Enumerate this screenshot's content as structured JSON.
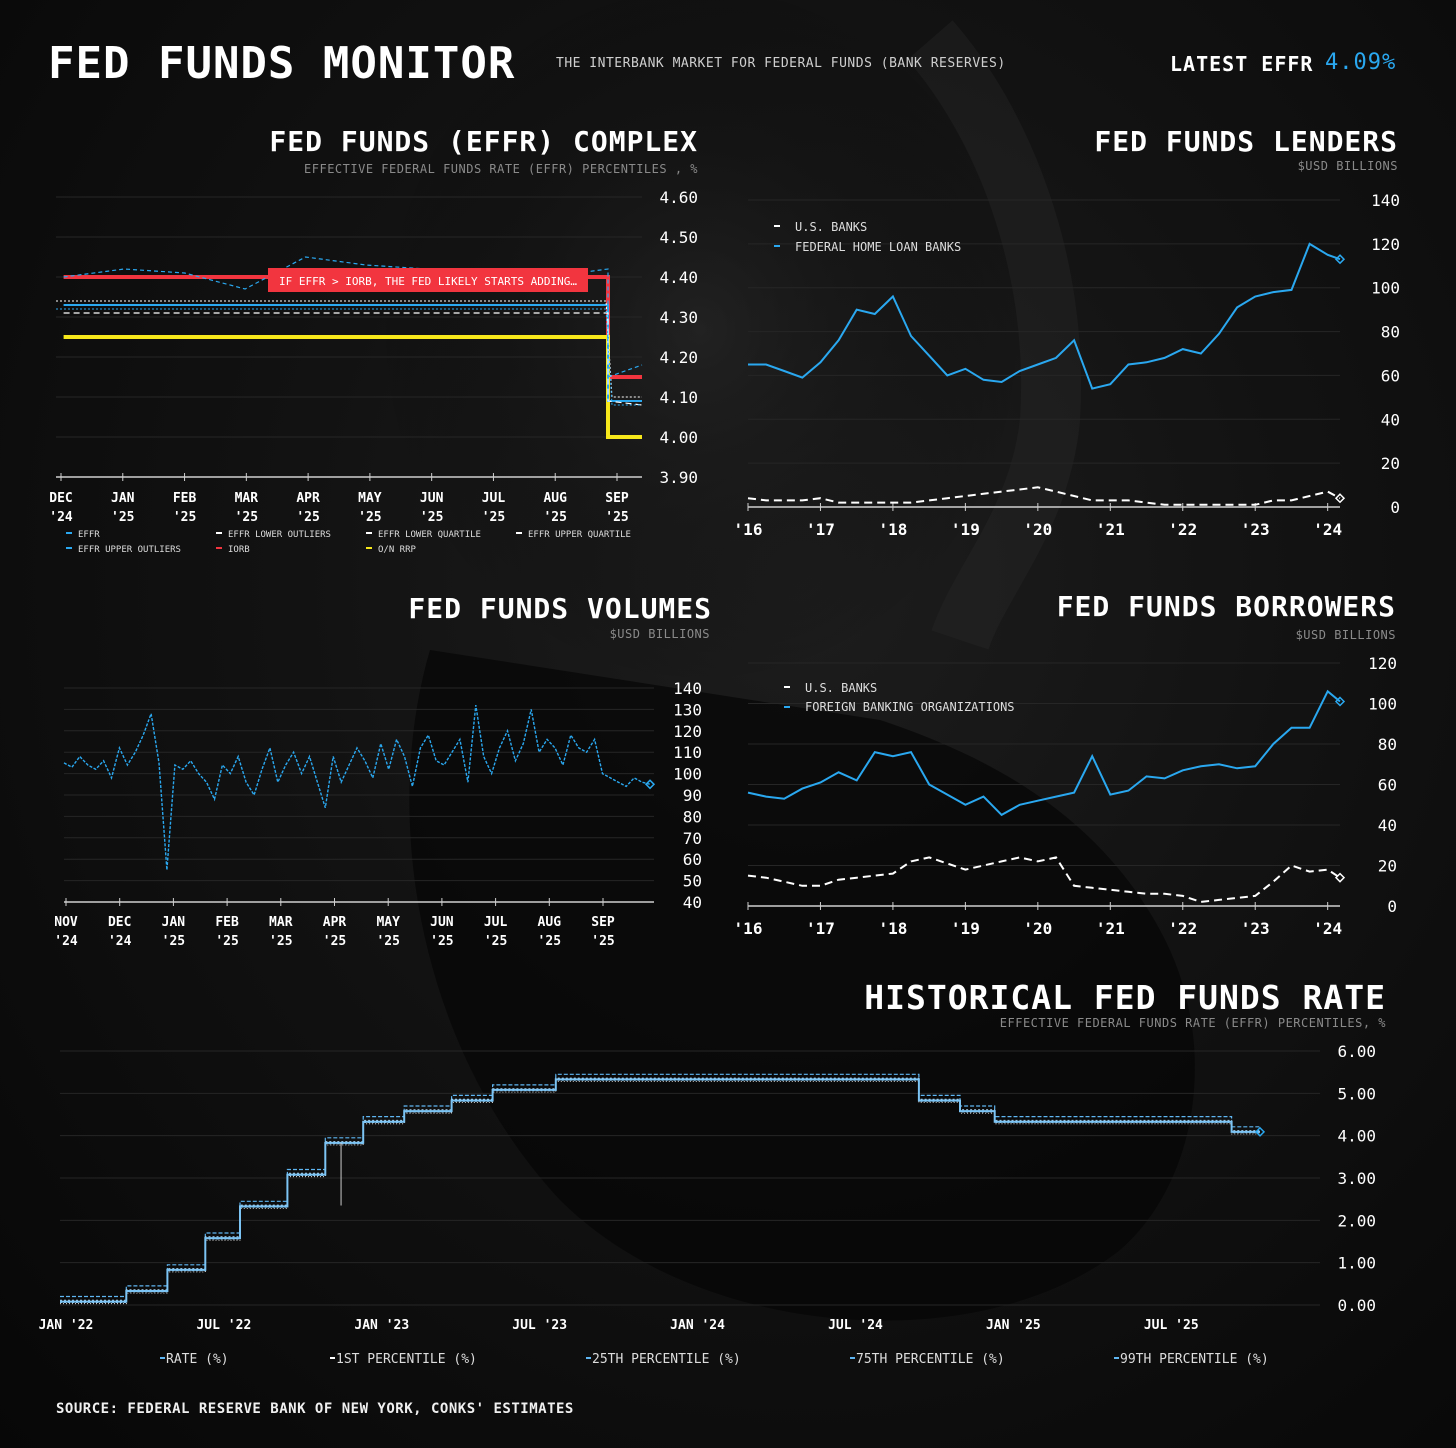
{
  "header": {
    "title": "FED FUNDS MONITOR",
    "subtitle": "THE INTERBANK MARKET FOR FEDERAL FUNDS (BANK RESERVES)",
    "latest_label": "LATEST EFFR",
    "latest_value": "4.09%"
  },
  "footer": {
    "source": "SOURCE: FEDERAL RESERVE BANK OF NEW YORK, CONKS' ESTIMATES"
  },
  "colors": {
    "blue": "#2aa8f0",
    "white": "#ffffff",
    "red": "#f2353f",
    "yellow": "#f7e81b"
  },
  "chart_data": [
    {
      "id": "complex",
      "type": "line",
      "title": "FED FUNDS (EFFR) COMPLEX",
      "subtitle": "EFFECTIVE FEDERAL FUNDS RATE (EFFR) PERCENTILES , %",
      "ylim": [
        3.9,
        4.6
      ],
      "yticks": [
        "4.60",
        "4.50",
        "4.40",
        "4.30",
        "4.20",
        "4.10",
        "4.00",
        "3.90"
      ],
      "xticks": [
        [
          "DEC",
          "'24"
        ],
        [
          "JAN",
          "'25"
        ],
        [
          "FEB",
          "'25"
        ],
        [
          "MAR",
          "'25"
        ],
        [
          "APR",
          "'25"
        ],
        [
          "MAY",
          "'25"
        ],
        [
          "JUN",
          "'25"
        ],
        [
          "JUL",
          "'25"
        ],
        [
          "AUG",
          "'25"
        ],
        [
          "SEP",
          "'25"
        ]
      ],
      "annotation": "IF EFFR > IORB, THE FED LIKELY STARTS ADDING…",
      "legend": [
        "EFFR",
        "EFFR LOWER OUTLIERS",
        "EFFR LOWER QUARTILE",
        "EFFR UPPER QUARTILE",
        "EFFR UPPER OUTLIERS",
        "IORB",
        "O/N RRP"
      ],
      "series": [
        {
          "name": "IORB",
          "values": [
            4.4,
            4.4,
            4.4,
            4.4,
            4.4,
            4.4,
            4.4,
            4.4,
            4.4,
            4.4,
            4.15,
            4.15
          ]
        },
        {
          "name": "O/N RRP",
          "values": [
            4.25,
            4.25,
            4.25,
            4.25,
            4.25,
            4.25,
            4.25,
            4.25,
            4.25,
            4.25,
            4.0,
            4.0
          ]
        },
        {
          "name": "EFFR",
          "values": [
            4.33,
            4.33,
            4.33,
            4.33,
            4.33,
            4.33,
            4.33,
            4.33,
            4.33,
            4.33,
            4.09,
            4.09
          ]
        },
        {
          "name": "EFFR UPPER OUTLIERS",
          "values": [
            4.4,
            4.42,
            4.41,
            4.37,
            4.45,
            4.43,
            4.42,
            4.41,
            4.4,
            4.42,
            4.15,
            4.18
          ]
        },
        {
          "name": "EFFR LOWER OUTLIERS",
          "values": [
            4.31,
            4.31,
            4.31,
            4.31,
            4.31,
            4.31,
            4.31,
            4.31,
            4.31,
            4.31,
            4.09,
            4.08
          ]
        }
      ]
    },
    {
      "id": "lenders",
      "type": "line",
      "title": "FED FUNDS LENDERS",
      "subtitle": "$USD BILLIONS",
      "ylim": [
        0,
        140
      ],
      "yticks": [
        "140",
        "120",
        "100",
        "80",
        "60",
        "40",
        "20",
        "0"
      ],
      "xticks": [
        "'16",
        "'17",
        "'18",
        "'19",
        "'20",
        "'21",
        "'22",
        "'23",
        "'24"
      ],
      "legend": [
        "U.S. BANKS",
        "FEDERAL HOME LOAN BANKS"
      ],
      "x": [
        2016,
        2016.25,
        2016.5,
        2016.75,
        2017,
        2017.25,
        2017.5,
        2017.75,
        2018,
        2018.25,
        2018.5,
        2018.75,
        2019,
        2019.25,
        2019.5,
        2019.75,
        2020,
        2020.25,
        2020.5,
        2020.75,
        2021,
        2021.25,
        2021.5,
        2021.75,
        2022,
        2022.25,
        2022.5,
        2022.75,
        2023,
        2023.25,
        2023.5,
        2023.75,
        2024,
        2024.17
      ],
      "series": [
        {
          "name": "FEDERAL HOME LOAN BANKS",
          "values": [
            65,
            65,
            62,
            59,
            66,
            76,
            90,
            88,
            96,
            78,
            69,
            60,
            63,
            58,
            57,
            62,
            65,
            68,
            76,
            54,
            56,
            65,
            66,
            68,
            72,
            70,
            79,
            91,
            96,
            98,
            99,
            120,
            115,
            113
          ]
        },
        {
          "name": "U.S. BANKS",
          "values": [
            4,
            3,
            3,
            3,
            4,
            2,
            2,
            2,
            2,
            2,
            3,
            4,
            5,
            6,
            7,
            8,
            9,
            7,
            5,
            3,
            3,
            3,
            2,
            1,
            1,
            1,
            1,
            1,
            1,
            3,
            3,
            5,
            7,
            4
          ]
        }
      ]
    },
    {
      "id": "volumes",
      "type": "line",
      "title": "FED FUNDS VOLUMES",
      "subtitle": "$USD BILLIONS",
      "ylim": [
        40,
        140
      ],
      "yticks": [
        "140",
        "130",
        "120",
        "110",
        "100",
        "90",
        "80",
        "70",
        "60",
        "50",
        "40"
      ],
      "xticks": [
        [
          "NOV",
          "'24"
        ],
        [
          "DEC",
          "'24"
        ],
        [
          "JAN",
          "'25"
        ],
        [
          "FEB",
          "'25"
        ],
        [
          "MAR",
          "'25"
        ],
        [
          "APR",
          "'25"
        ],
        [
          "MAY",
          "'25"
        ],
        [
          "JUN",
          "'25"
        ],
        [
          "JUL",
          "'25"
        ],
        [
          "AUG",
          "'25"
        ],
        [
          "SEP",
          "'25"
        ]
      ],
      "values": [
        105,
        103,
        108,
        104,
        102,
        106,
        98,
        112,
        104,
        110,
        118,
        128,
        105,
        55,
        104,
        102,
        106,
        100,
        96,
        88,
        104,
        100,
        108,
        96,
        90,
        102,
        112,
        96,
        104,
        110,
        100,
        108,
        96,
        84,
        108,
        96,
        104,
        112,
        106,
        98,
        114,
        102,
        116,
        108,
        94,
        112,
        118,
        106,
        104,
        110,
        116,
        96,
        132,
        108,
        100,
        112,
        120,
        106,
        114,
        130,
        110,
        116,
        112,
        104,
        118,
        112,
        110,
        116,
        100,
        98,
        96,
        94,
        98,
        96,
        95
      ]
    },
    {
      "id": "borrowers",
      "type": "line",
      "title": "FED FUNDS BORROWERS",
      "subtitle": "$USD BILLIONS",
      "ylim": [
        0,
        120
      ],
      "yticks": [
        "120",
        "100",
        "80",
        "60",
        "40",
        "20",
        "0"
      ],
      "xticks": [
        "'16",
        "'17",
        "'18",
        "'19",
        "'20",
        "'21",
        "'22",
        "'23",
        "'24"
      ],
      "legend": [
        "U.S. BANKS",
        "FOREIGN BANKING ORGANIZATIONS"
      ],
      "x": [
        2016,
        2016.25,
        2016.5,
        2016.75,
        2017,
        2017.25,
        2017.5,
        2017.75,
        2018,
        2018.25,
        2018.5,
        2018.75,
        2019,
        2019.25,
        2019.5,
        2019.75,
        2020,
        2020.25,
        2020.5,
        2020.75,
        2021,
        2021.25,
        2021.5,
        2021.75,
        2022,
        2022.25,
        2022.5,
        2022.75,
        2023,
        2023.25,
        2023.5,
        2023.75,
        2024,
        2024.17
      ],
      "series": [
        {
          "name": "FOREIGN BANKING ORGANIZATIONS",
          "values": [
            56,
            54,
            53,
            58,
            61,
            66,
            62,
            76,
            74,
            76,
            60,
            55,
            50,
            54,
            45,
            50,
            52,
            54,
            56,
            74,
            55,
            57,
            64,
            63,
            67,
            69,
            70,
            68,
            69,
            80,
            88,
            88,
            106,
            101
          ]
        },
        {
          "name": "U.S. BANKS",
          "values": [
            15,
            14,
            12,
            10,
            10,
            13,
            14,
            15,
            16,
            22,
            24,
            21,
            18,
            20,
            22,
            24,
            22,
            24,
            10,
            9,
            8,
            7,
            6,
            6,
            5,
            2,
            3,
            4,
            5,
            12,
            20,
            17,
            18,
            14
          ]
        }
      ]
    },
    {
      "id": "historical",
      "type": "line",
      "title": "HISTORICAL FED FUNDS RATE",
      "subtitle": "EFFECTIVE FEDERAL FUNDS RATE (EFFR) PERCENTILES, %",
      "ylim": [
        0,
        6
      ],
      "yticks": [
        "6.00",
        "5.00",
        "4.00",
        "3.00",
        "2.00",
        "1.00",
        "0.00"
      ],
      "xticks": [
        "JAN '22",
        "JUL '22",
        "JAN '23",
        "JUL '23",
        "JAN '24",
        "JUL '24",
        "JAN '25",
        "JUL '25"
      ],
      "legend": [
        "RATE (%)",
        "1ST PERCENTILE (%)",
        "25TH PERCENTILE (%)",
        "75TH PERCENTILE (%)",
        "99TH PERCENTILE (%)"
      ],
      "steps": [
        [
          2022.0,
          0.08
        ],
        [
          2022.21,
          0.33
        ],
        [
          2022.34,
          0.83
        ],
        [
          2022.46,
          1.58
        ],
        [
          2022.57,
          2.33
        ],
        [
          2022.72,
          3.08
        ],
        [
          2022.84,
          3.83
        ],
        [
          2022.96,
          4.33
        ],
        [
          2023.09,
          4.58
        ],
        [
          2023.24,
          4.83
        ],
        [
          2023.37,
          5.08
        ],
        [
          2023.57,
          5.33
        ],
        [
          2024.72,
          4.83
        ],
        [
          2024.85,
          4.58
        ],
        [
          2024.96,
          4.33
        ],
        [
          2025.71,
          4.09
        ],
        [
          2025.8,
          4.09
        ]
      ],
      "xrange": [
        2022.0,
        2025.8
      ]
    }
  ]
}
